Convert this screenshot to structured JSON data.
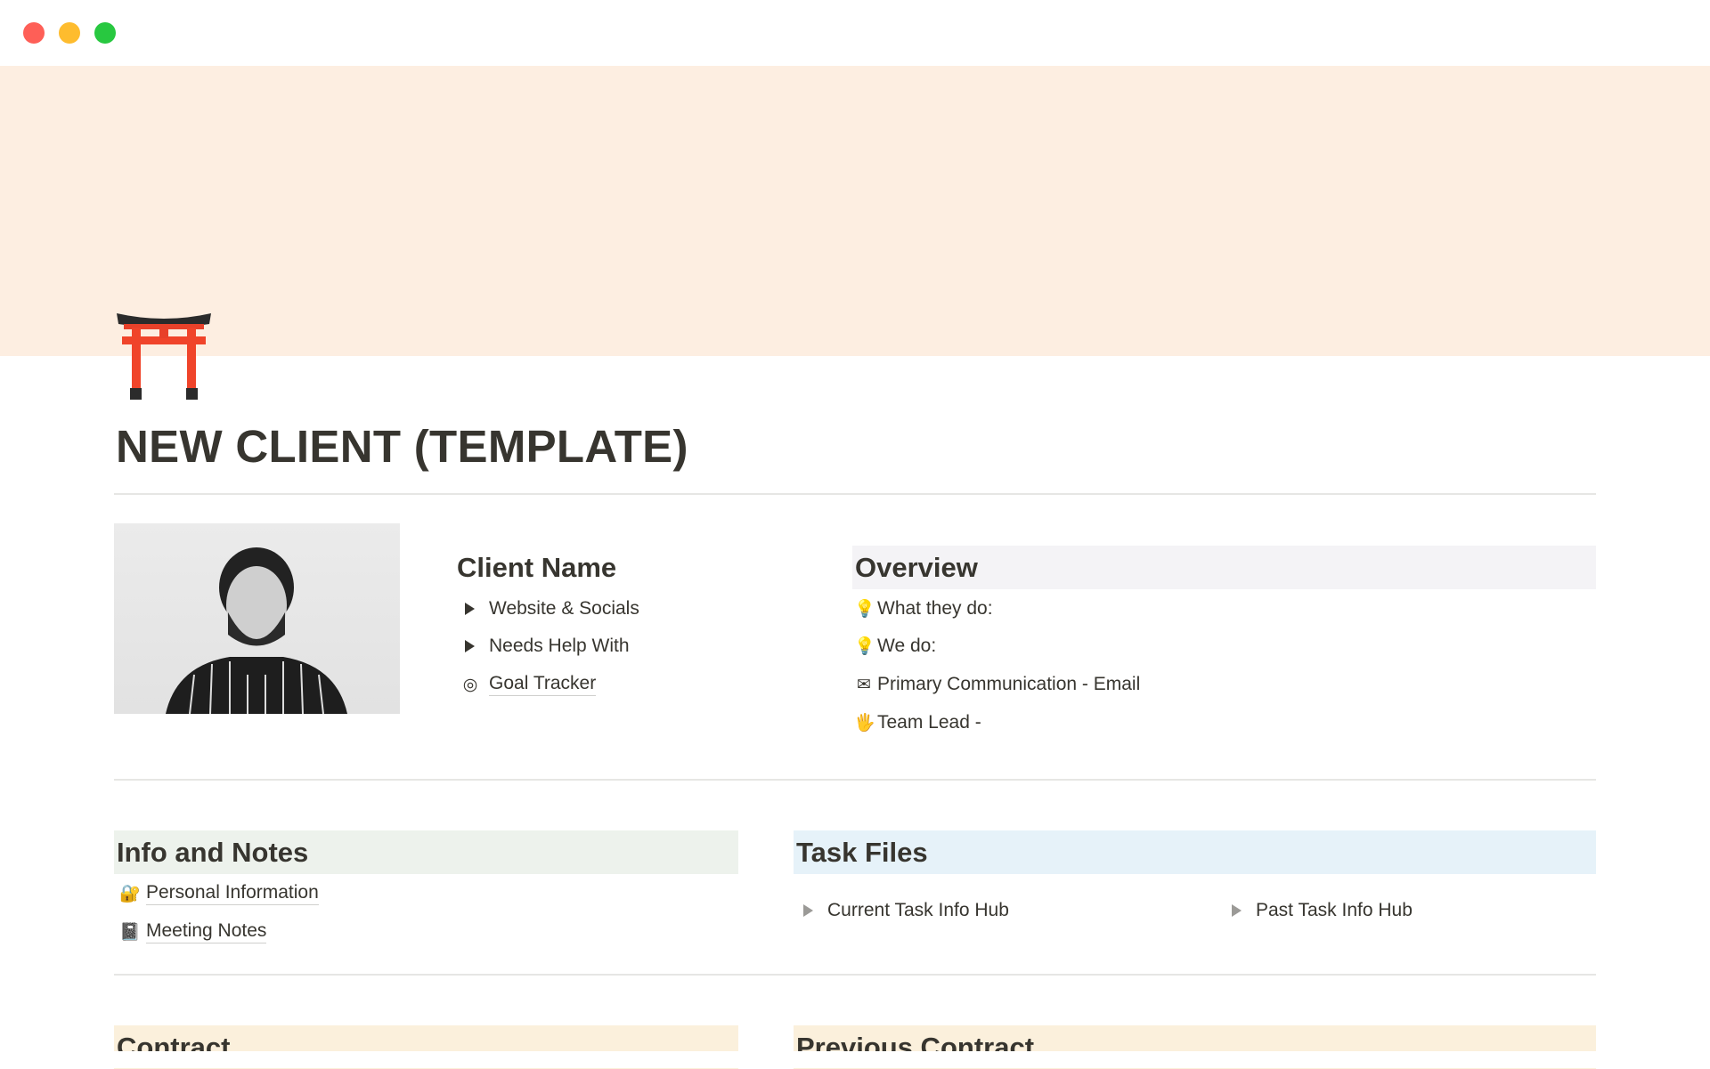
{
  "window": {
    "controls": [
      "close",
      "minimize",
      "maximize"
    ],
    "colors": {
      "close": "#fe5f57",
      "minimize": "#febc2e",
      "maximize": "#28c840"
    }
  },
  "cover": {
    "color": "#fdeee1"
  },
  "page": {
    "icon": "torii-gate-icon",
    "title": "NEW CLIENT (TEMPLATE)"
  },
  "client": {
    "heading": "Client Name",
    "items": [
      {
        "type": "toggle",
        "label": "Website & Socials"
      },
      {
        "type": "toggle",
        "label": "Needs Help With"
      },
      {
        "type": "page-link",
        "icon": "target-icon",
        "label": "Goal Tracker"
      }
    ]
  },
  "overview": {
    "heading": "Overview",
    "bg": "#f4f3f6",
    "items": [
      {
        "icon": "light-bulb-icon",
        "label": "What they do:"
      },
      {
        "icon": "light-bulb-icon",
        "label": "We do:"
      },
      {
        "icon": "envelope-icon",
        "label": "Primary Communication - Email"
      },
      {
        "icon": "raised-hand-icon",
        "label": "Team Lead -"
      }
    ]
  },
  "info": {
    "heading": "Info and Notes",
    "bg": "#edf2ec",
    "items": [
      {
        "icon": "locked-with-key-icon",
        "label": "Personal Information"
      },
      {
        "icon": "notebook-icon",
        "label": "Meeting Notes"
      }
    ]
  },
  "tasks": {
    "heading": "Task Files",
    "bg": "#e6f2f9",
    "items": [
      {
        "label": "Current Task Info Hub"
      },
      {
        "label": "Past Task Info Hub"
      }
    ]
  },
  "contract": {
    "heading": "Contract",
    "bg": "#fbf0dc"
  },
  "previous_contract": {
    "heading": "Previous Contract",
    "bg": "#fbf0dc"
  }
}
